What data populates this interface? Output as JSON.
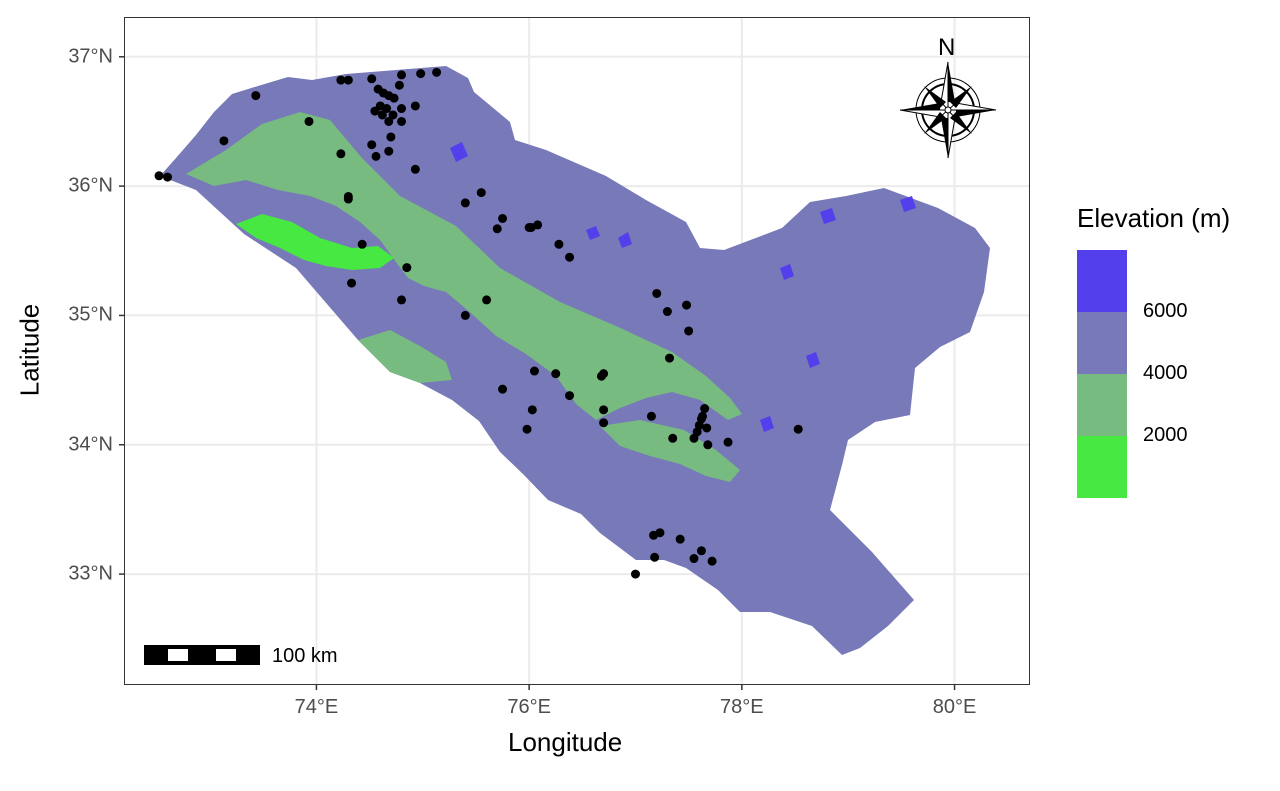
{
  "chart_data": {
    "type": "scatter",
    "xlabel": "Longitude",
    "ylabel": "Latitude",
    "xlim": [
      72.2,
      80.7
    ],
    "ylim": [
      32.15,
      37.3
    ],
    "x_ticks": [
      {
        "value": 74,
        "label": "74°E"
      },
      {
        "value": 76,
        "label": "76°E"
      },
      {
        "value": 78,
        "label": "78°E"
      },
      {
        "value": 80,
        "label": "80°E"
      }
    ],
    "y_ticks": [
      {
        "value": 33,
        "label": "33°N"
      },
      {
        "value": 34,
        "label": "34°N"
      },
      {
        "value": 35,
        "label": "35°N"
      },
      {
        "value": 36,
        "label": "36°N"
      },
      {
        "value": 37,
        "label": "37°N"
      }
    ],
    "grid": true,
    "legend": {
      "title": "Elevation (m)",
      "position": "right",
      "labels": [
        "6000",
        "4000",
        "2000"
      ],
      "colors": [
        "#5340ec",
        "#7779b8",
        "#78bb80",
        "#46e841"
      ]
    },
    "scale_bar_label": "100 km",
    "north_arrow_label": "N",
    "points": [
      [
        72.52,
        36.08
      ],
      [
        72.6,
        36.07
      ],
      [
        73.13,
        36.35
      ],
      [
        73.43,
        36.7
      ],
      [
        73.93,
        36.5
      ],
      [
        74.23,
        36.82
      ],
      [
        74.3,
        36.82
      ],
      [
        74.52,
        36.83
      ],
      [
        74.58,
        36.75
      ],
      [
        74.63,
        36.72
      ],
      [
        74.68,
        36.7
      ],
      [
        74.73,
        36.68
      ],
      [
        74.6,
        36.62
      ],
      [
        74.66,
        36.6
      ],
      [
        74.72,
        36.55
      ],
      [
        74.55,
        36.58
      ],
      [
        74.62,
        36.55
      ],
      [
        74.68,
        36.5
      ],
      [
        74.8,
        36.5
      ],
      [
        74.78,
        36.78
      ],
      [
        74.8,
        36.86
      ],
      [
        74.98,
        36.87
      ],
      [
        75.13,
        36.88
      ],
      [
        74.93,
        36.62
      ],
      [
        74.8,
        36.6
      ],
      [
        74.7,
        36.38
      ],
      [
        74.68,
        36.27
      ],
      [
        74.52,
        36.32
      ],
      [
        74.56,
        36.23
      ],
      [
        74.23,
        36.25
      ],
      [
        74.3,
        35.92
      ],
      [
        74.3,
        35.9
      ],
      [
        74.93,
        36.13
      ],
      [
        74.43,
        35.55
      ],
      [
        74.33,
        35.25
      ],
      [
        74.85,
        35.37
      ],
      [
        74.8,
        35.12
      ],
      [
        75.4,
        35.87
      ],
      [
        75.55,
        35.95
      ],
      [
        75.7,
        35.67
      ],
      [
        75.75,
        35.75
      ],
      [
        76.0,
        35.68
      ],
      [
        76.02,
        35.68
      ],
      [
        76.08,
        35.7
      ],
      [
        76.28,
        35.55
      ],
      [
        76.38,
        35.45
      ],
      [
        75.4,
        35.0
      ],
      [
        75.6,
        35.12
      ],
      [
        75.75,
        34.43
      ],
      [
        75.98,
        34.12
      ],
      [
        76.03,
        34.27
      ],
      [
        76.05,
        34.57
      ],
      [
        76.25,
        34.55
      ],
      [
        76.38,
        34.38
      ],
      [
        76.68,
        34.53
      ],
      [
        76.7,
        34.55
      ],
      [
        76.7,
        34.27
      ],
      [
        76.7,
        34.17
      ],
      [
        77.15,
        34.22
      ],
      [
        77.2,
        35.17
      ],
      [
        77.3,
        35.03
      ],
      [
        77.48,
        35.08
      ],
      [
        77.5,
        34.88
      ],
      [
        77.32,
        34.67
      ],
      [
        77.35,
        34.05
      ],
      [
        77.55,
        34.05
      ],
      [
        77.58,
        34.1
      ],
      [
        77.6,
        34.15
      ],
      [
        77.62,
        34.2
      ],
      [
        77.63,
        34.22
      ],
      [
        77.65,
        34.28
      ],
      [
        77.67,
        34.13
      ],
      [
        77.68,
        34.0
      ],
      [
        77.87,
        34.02
      ],
      [
        78.53,
        34.12
      ],
      [
        77.17,
        33.3
      ],
      [
        77.23,
        33.32
      ],
      [
        77.42,
        33.27
      ],
      [
        77.18,
        33.13
      ],
      [
        77.55,
        33.12
      ],
      [
        77.62,
        33.18
      ],
      [
        77.72,
        33.1
      ],
      [
        77.0,
        33.0
      ]
    ]
  }
}
